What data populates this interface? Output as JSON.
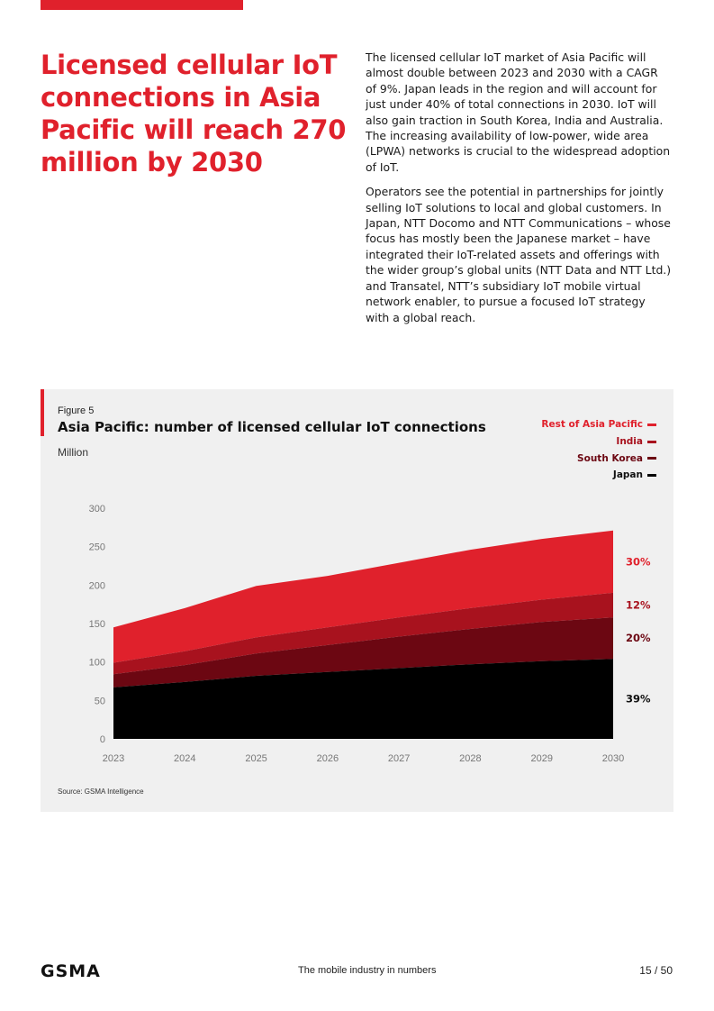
{
  "headline": "Licensed cellular IoT connections in Asia Pacific will reach 270 million by 2030",
  "body_paragraphs": [
    "The licensed cellular IoT market of Asia Pacific will almost double between 2023 and 2030 with a CAGR of 9%. Japan leads in the region and will account for just under 40% of total connections in 2030. IoT will also gain traction in South Korea, India and Australia. The increasing availability of low-power, wide area (LPWA) networks is crucial to the widespread adoption of IoT.",
    "Operators see the potential in partnerships for jointly selling IoT solutions to local and global customers. In Japan, NTT Docomo and NTT Communications – whose focus has mostly been the Japanese market – have integrated their IoT-related assets and offerings with the wider group’s global units (NTT Data and NTT Ltd.) and Transatel, NTT’s subsidiary IoT mobile virtual network enabler, to pursue a focused IoT strategy with a global reach."
  ],
  "figure": {
    "label": "Figure 5",
    "title": "Asia Pacific: number of licensed cellular IoT connections",
    "unit": "Million",
    "source": "Source: GSMA Intelligence"
  },
  "colors": {
    "accent": "#e0212c",
    "rest_of_asia_pacific": "#e0212c",
    "india": "#a8121e",
    "south_korea": "#6c0712",
    "japan": "#000000"
  },
  "chart_data": {
    "type": "area",
    "stacked": true,
    "title": "Asia Pacific: number of licensed cellular IoT connections",
    "ylabel": "Million",
    "ylim": [
      0,
      300
    ],
    "yticks": [
      0,
      50,
      100,
      150,
      200,
      250,
      300
    ],
    "x": [
      "2023",
      "2024",
      "2025",
      "2026",
      "2027",
      "2028",
      "2029",
      "2030"
    ],
    "series": [
      {
        "name": "Japan",
        "color": "#000000",
        "share_2030": "39%",
        "values": [
          67,
          74,
          82,
          87,
          92,
          97,
          101,
          104
        ]
      },
      {
        "name": "South Korea",
        "color": "#6c0712",
        "share_2030": "20%",
        "values": [
          17,
          22,
          29,
          35,
          41,
          46,
          51,
          54
        ]
      },
      {
        "name": "India",
        "color": "#a8121e",
        "share_2030": "12%",
        "values": [
          15,
          18,
          21,
          23,
          25,
          27,
          29,
          32
        ]
      },
      {
        "name": "Rest of Asia Pacific",
        "color": "#e0212c",
        "share_2030": "30%",
        "values": [
          46,
          56,
          67,
          67,
          71,
          76,
          79,
          81
        ]
      }
    ],
    "legend_order": [
      "Rest of Asia Pacific",
      "India",
      "South Korea",
      "Japan"
    ]
  },
  "footer": {
    "logo": "GSMA",
    "center": "The mobile industry in numbers",
    "page": "15 / 50"
  }
}
